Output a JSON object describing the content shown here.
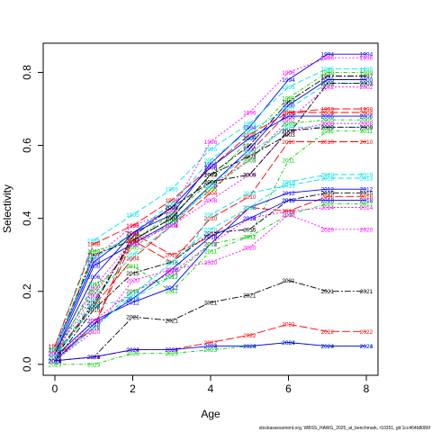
{
  "chart_data": {
    "type": "line",
    "xlabel": "Age",
    "ylabel": "Selectivity",
    "xlim": [
      -0.3,
      8.3
    ],
    "ylim": [
      -0.03,
      0.88
    ],
    "x_ticks": [
      0,
      2,
      4,
      6,
      8
    ],
    "y_ticks": [
      0.0,
      0.2,
      0.4,
      0.6,
      0.8
    ],
    "x_tick_labels": [
      "0",
      "2",
      "4",
      "6",
      "8"
    ],
    "y_tick_labels": [
      "0.0",
      "0.2",
      "0.4",
      "0.6",
      "0.8"
    ],
    "grid": false,
    "x": [
      0,
      1,
      2,
      3,
      4,
      5,
      6,
      7,
      8
    ],
    "series": [
      {
        "name": "1994",
        "color": "#0000ff",
        "values": [
          0.04,
          0.28,
          0.36,
          0.41,
          0.55,
          0.65,
          0.78,
          0.85,
          0.85
        ]
      },
      {
        "name": "1995",
        "color": "#00e5e5",
        "values": [
          0.05,
          0.34,
          0.41,
          0.48,
          0.59,
          0.66,
          0.76,
          0.81,
          0.81
        ]
      },
      {
        "name": "1996",
        "color": "#ff00ff",
        "values": [
          0.05,
          0.29,
          0.38,
          0.42,
          0.61,
          0.69,
          0.8,
          0.84,
          0.84
        ]
      },
      {
        "name": "1997",
        "color": "#000000",
        "values": [
          0.04,
          0.3,
          0.34,
          0.4,
          0.52,
          0.6,
          0.72,
          0.79,
          0.79
        ]
      },
      {
        "name": "1998",
        "color": "#ff0000",
        "values": [
          0.05,
          0.33,
          0.38,
          0.45,
          0.54,
          0.63,
          0.69,
          0.7,
          0.7
        ]
      },
      {
        "name": "1999",
        "color": "#00cd00",
        "values": [
          0.04,
          0.31,
          0.34,
          0.41,
          0.5,
          0.62,
          0.73,
          0.8,
          0.8
        ]
      },
      {
        "name": "2000",
        "color": "#0000ff",
        "values": [
          0.03,
          0.27,
          0.33,
          0.39,
          0.49,
          0.59,
          0.71,
          0.78,
          0.78
        ]
      },
      {
        "name": "2001",
        "color": "#00e5e5",
        "values": [
          0.04,
          0.29,
          0.36,
          0.44,
          0.56,
          0.64,
          0.7,
          0.77,
          0.77
        ]
      },
      {
        "name": "2002",
        "color": "#ff00ff",
        "values": [
          0.03,
          0.21,
          0.34,
          0.38,
          0.49,
          0.56,
          0.67,
          0.76,
          0.76
        ]
      },
      {
        "name": "2003",
        "color": "#000000",
        "values": [
          0.02,
          0.17,
          0.34,
          0.4,
          0.52,
          0.57,
          0.63,
          0.77,
          0.77
        ]
      },
      {
        "name": "2004",
        "color": "#ff0000",
        "values": [
          0.03,
          0.16,
          0.29,
          0.38,
          0.47,
          0.58,
          0.69,
          0.69,
          0.69
        ]
      },
      {
        "name": "2005",
        "color": "#00cd00",
        "values": [
          0.04,
          0.2,
          0.32,
          0.39,
          0.48,
          0.56,
          0.66,
          0.67,
          0.67
        ]
      },
      {
        "name": "2006",
        "color": "#0000ff",
        "values": [
          0.03,
          0.24,
          0.36,
          0.43,
          0.54,
          0.62,
          0.68,
          0.68,
          0.68
        ]
      },
      {
        "name": "2007",
        "color": "#00e5e5",
        "values": [
          0.02,
          0.18,
          0.3,
          0.38,
          0.49,
          0.58,
          0.65,
          0.65,
          0.65
        ]
      },
      {
        "name": "2008",
        "color": "#ff00ff",
        "values": [
          0.03,
          0.19,
          0.33,
          0.38,
          0.45,
          0.52,
          0.64,
          0.66,
          0.66
        ]
      },
      {
        "name": "2009",
        "color": "#000000",
        "values": [
          0.02,
          0.16,
          0.35,
          0.43,
          0.5,
          0.52,
          0.64,
          0.65,
          0.65
        ]
      },
      {
        "name": "2010",
        "color": "#ff0000",
        "values": [
          0.02,
          0.1,
          0.34,
          0.28,
          0.4,
          0.46,
          0.61,
          0.61,
          0.61
        ]
      },
      {
        "name": "2011",
        "color": "#00cd00",
        "values": [
          0.02,
          0.22,
          0.27,
          0.2,
          0.31,
          0.35,
          0.56,
          0.64,
          0.64
        ]
      },
      {
        "name": "2012",
        "color": "#0000ff",
        "values": [
          0.02,
          0.12,
          0.17,
          0.21,
          0.33,
          0.43,
          0.47,
          0.48,
          0.48
        ]
      },
      {
        "name": "2013",
        "color": "#00e5e5",
        "values": [
          0.02,
          0.16,
          0.18,
          0.24,
          0.41,
          0.47,
          0.49,
          0.51,
          0.51
        ]
      },
      {
        "name": "2014",
        "color": "#ff00ff",
        "values": [
          0.01,
          0.12,
          0.2,
          0.25,
          0.33,
          0.4,
          0.42,
          0.43,
          0.43
        ]
      },
      {
        "name": "2015",
        "color": "#000000",
        "values": [
          0.01,
          0.15,
          0.25,
          0.28,
          0.36,
          0.37,
          0.45,
          0.47,
          0.47
        ]
      },
      {
        "name": "2016",
        "color": "#ff0000",
        "values": [
          0.01,
          0.1,
          0.36,
          0.3,
          0.35,
          0.43,
          0.42,
          0.46,
          0.46
        ]
      },
      {
        "name": "2017",
        "color": "#00cd00",
        "values": [
          0.01,
          0.1,
          0.2,
          0.24,
          0.33,
          0.35,
          0.41,
          0.44,
          0.44
        ]
      },
      {
        "name": "2018",
        "color": "#0000ff",
        "values": [
          0.01,
          0.11,
          0.18,
          0.26,
          0.35,
          0.4,
          0.45,
          0.45,
          0.45
        ]
      },
      {
        "name": "2019",
        "color": "#00e5e5",
        "values": [
          0.01,
          0.1,
          0.19,
          0.28,
          0.37,
          0.43,
          0.5,
          0.52,
          0.52
        ]
      },
      {
        "name": "2020",
        "color": "#ff00ff",
        "values": [
          0.01,
          0.09,
          0.23,
          0.26,
          0.28,
          0.32,
          0.41,
          0.37,
          0.37
        ]
      },
      {
        "name": "2021",
        "color": "#000000",
        "values": [
          0.01,
          0.02,
          0.13,
          0.12,
          0.17,
          0.19,
          0.23,
          0.2,
          0.2
        ]
      },
      {
        "name": "2022",
        "color": "#ff0000",
        "values": [
          0.01,
          0.02,
          0.04,
          0.04,
          0.06,
          0.08,
          0.11,
          0.09,
          0.09
        ]
      },
      {
        "name": "2023",
        "color": "#00cd00",
        "values": [
          0.0,
          0.0,
          0.03,
          0.03,
          0.04,
          0.05,
          0.06,
          0.05,
          0.05
        ]
      },
      {
        "name": "2024",
        "color": "#0000ff",
        "values": [
          0.01,
          0.02,
          0.04,
          0.04,
          0.05,
          0.05,
          0.06,
          0.05,
          0.05
        ]
      }
    ]
  },
  "footer": {
    "source": "stockassessment.org, WBSS_HAWG_2025_at_benchmark, r10351, git:1cc464b8086f"
  }
}
